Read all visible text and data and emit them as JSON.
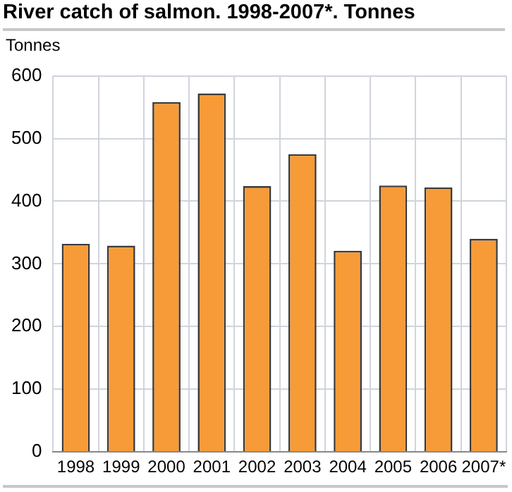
{
  "chart_data": {
    "type": "bar",
    "title": "River catch of salmon. 1998-2007*. Tonnes",
    "ylabel": "Tonnes",
    "categories": [
      "1998",
      "1999",
      "2000",
      "2001",
      "2002",
      "2003",
      "2004",
      "2005",
      "2006",
      "2007*"
    ],
    "values": [
      332,
      329,
      558,
      572,
      424,
      475,
      321,
      425,
      422,
      340
    ],
    "color": "#f79b38",
    "ylim": [
      0,
      600
    ],
    "yticks": [
      0,
      100,
      200,
      300,
      400,
      500,
      600
    ],
    "grid": true,
    "legend": false
  }
}
